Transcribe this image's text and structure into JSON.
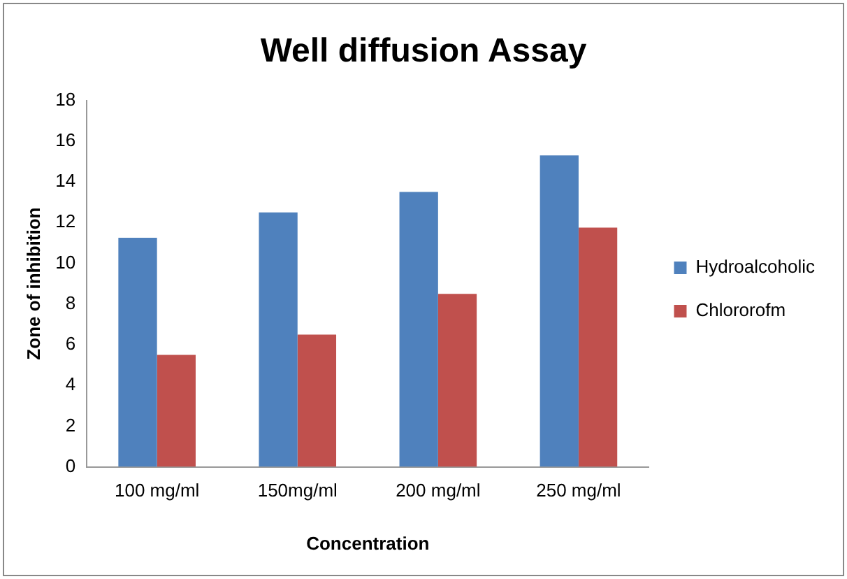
{
  "chart_data": {
    "type": "bar",
    "title": "Well diffusion Assay",
    "xlabel": "Concentration",
    "ylabel": "Zone of inhibition",
    "categories": [
      "100 mg/ml",
      "150mg/ml",
      "200 mg/ml",
      "250 mg/ml"
    ],
    "series": [
      {
        "name": "Hydroalcoholic",
        "color": "#4f81bd",
        "values": [
          11.25,
          12.5,
          13.5,
          15.3
        ]
      },
      {
        "name": "Chlororofm",
        "color": "#c0504d",
        "values": [
          5.5,
          6.5,
          8.5,
          11.75
        ]
      }
    ],
    "ylim": [
      0,
      18
    ],
    "yticks": [
      0,
      2,
      4,
      6,
      8,
      10,
      12,
      14,
      16,
      18
    ],
    "grid": false,
    "legend": "right"
  }
}
